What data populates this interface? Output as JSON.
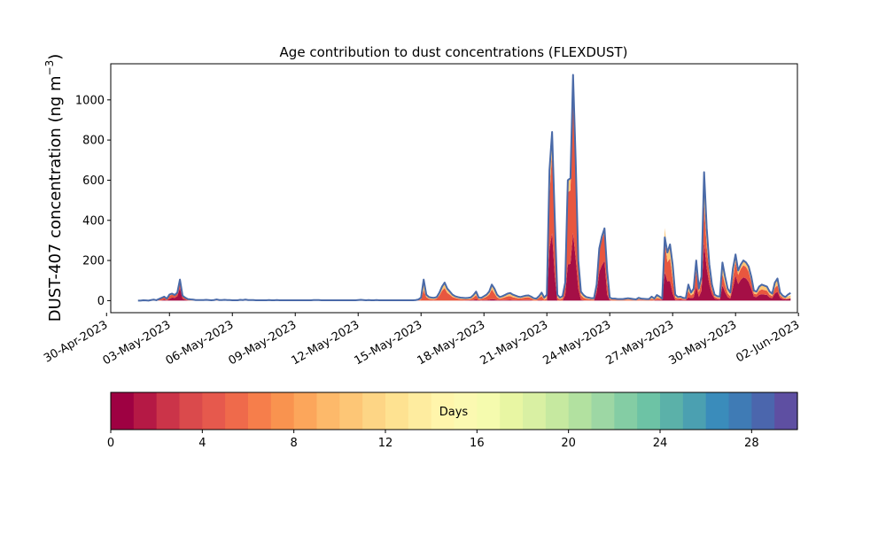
{
  "chart_data": {
    "type": "area",
    "title": "Age contribution to dust concentrations (FLEXDUST)",
    "xlabel": "",
    "ylabel_main": "DUST-407 concentration (ng m",
    "ylabel_sup": "−3",
    "ylabel_close": ")",
    "ylim": [
      -60,
      1180
    ],
    "xlim": [
      "2023-04-30T04:48",
      "2023-06-01T22:48"
    ],
    "grid": false,
    "yticks": [
      0,
      200,
      400,
      600,
      800,
      1000
    ],
    "xticks": [
      "30-Apr-2023",
      "03-May-2023",
      "06-May-2023",
      "09-May-2023",
      "12-May-2023",
      "15-May-2023",
      "18-May-2023",
      "21-May-2023",
      "24-May-2023",
      "27-May-2023",
      "30-May-2023",
      "02-Jun-2023"
    ],
    "x_start": "2023-05-01T12:00",
    "time_step_hours": 3,
    "total": [
      0,
      0,
      2,
      1,
      0,
      3,
      5,
      2,
      8,
      14,
      20,
      10,
      30,
      35,
      28,
      40,
      105,
      25,
      15,
      8,
      6,
      5,
      3,
      3,
      3,
      3,
      4,
      3,
      2,
      3,
      6,
      3,
      3,
      4,
      3,
      3,
      2,
      2,
      2,
      4,
      3,
      5,
      3,
      3,
      3,
      2,
      2,
      2,
      2,
      2,
      3,
      2,
      2,
      3,
      2,
      2,
      2,
      2,
      2,
      2,
      2,
      2,
      2,
      2,
      2,
      2,
      2,
      3,
      3,
      3,
      2,
      2,
      2,
      2,
      2,
      2,
      2,
      2,
      2,
      2,
      2,
      2,
      2,
      2,
      3,
      4,
      3,
      2,
      3,
      2,
      2,
      3,
      2,
      2,
      2,
      2,
      2,
      2,
      2,
      2,
      2,
      2,
      2,
      2,
      2,
      2,
      3,
      6,
      15,
      105,
      30,
      18,
      15,
      14,
      18,
      40,
      70,
      90,
      60,
      45,
      30,
      22,
      18,
      15,
      14,
      13,
      14,
      16,
      28,
      45,
      15,
      14,
      22,
      30,
      45,
      80,
      60,
      30,
      18,
      22,
      28,
      35,
      38,
      30,
      25,
      20,
      18,
      22,
      25,
      26,
      20,
      12,
      10,
      22,
      40,
      15,
      30,
      650,
      840,
      420,
      30,
      15,
      22,
      90,
      600,
      610,
      1125,
      700,
      200,
      45,
      28,
      18,
      15,
      12,
      12,
      80,
      260,
      320,
      360,
      150,
      15,
      10,
      10,
      8,
      8,
      8,
      10,
      12,
      10,
      8,
      6,
      14,
      10,
      9,
      8,
      8,
      20,
      10,
      28,
      20,
      10,
      315,
      240,
      280,
      180,
      30,
      18,
      20,
      14,
      12,
      80,
      40,
      60,
      200,
      60,
      120,
      640,
      360,
      180,
      80,
      30,
      22,
      20,
      190,
      120,
      60,
      40,
      160,
      230,
      150,
      180,
      200,
      190,
      170,
      120,
      50,
      45,
      70,
      80,
      75,
      70,
      45,
      35,
      90,
      110,
      40,
      25,
      18,
      30,
      38
    ],
    "fractions": {
      "old": [
        0.0,
        0.0,
        0.8,
        0.3,
        0.0,
        0.8,
        0.6,
        0.6,
        0.35,
        0.2,
        0.1,
        0.3,
        0.2,
        0.15,
        0.1,
        0.1,
        0.05,
        0.15,
        0.2,
        0.4,
        0.8,
        0.8,
        0.8,
        0.8,
        0.8,
        0.8,
        0.8,
        0.8,
        0.8,
        0.8,
        0.8,
        0.8,
        0.8,
        0.8,
        0.8,
        0.8,
        0.8,
        0.8,
        0.8,
        0.8,
        0.8,
        0.8,
        0.8,
        0.8,
        0.8,
        0.8,
        0.8,
        0.8,
        0.8,
        0.8,
        0.8,
        0.8,
        0.8,
        0.8,
        0.8,
        0.8,
        0.8,
        0.8,
        0.8,
        0.8,
        0.8,
        0.8,
        0.8,
        0.8,
        0.8,
        0.8,
        0.8,
        0.8,
        0.8,
        0.8,
        0.8,
        0.8,
        0.8,
        0.8,
        0.8,
        0.8,
        0.8,
        0.8,
        0.8,
        0.8,
        0.8,
        0.8,
        0.8,
        0.8,
        0.8,
        0.8,
        0.8,
        0.8,
        0.8,
        0.8,
        0.8,
        0.8,
        0.8,
        0.8,
        0.8,
        0.8,
        0.8,
        0.8,
        0.8,
        0.8,
        0.8,
        0.8,
        0.8,
        0.8,
        0.8,
        0.8,
        0.8,
        0.6,
        0.6,
        0.5,
        0.4,
        0.5,
        0.6,
        0.6,
        0.4,
        0.35,
        0.3,
        0.3,
        0.35,
        0.35,
        0.4,
        0.4,
        0.45,
        0.5,
        0.55,
        0.5,
        0.55,
        0.5,
        0.45,
        0.4,
        0.55,
        0.45,
        0.4,
        0.35,
        0.35,
        0.3,
        0.4,
        0.45,
        0.5,
        0.45,
        0.4,
        0.4,
        0.4,
        0.45,
        0.45,
        0.45,
        0.4,
        0.4,
        0.35,
        0.35,
        0.4,
        0.6,
        0.6,
        0.4,
        0.45,
        0.65,
        0.7,
        0.2,
        0.12,
        0.1,
        0.5,
        0.6,
        0.5,
        0.2,
        0.1,
        0.1,
        0.1,
        0.1,
        0.1,
        0.4,
        0.5,
        0.5,
        0.5,
        0.55,
        0.55,
        0.1,
        0.05,
        0.05,
        0.05,
        0.4,
        0.5,
        0.6,
        0.6,
        0.6,
        0.6,
        0.6,
        0.6,
        0.6,
        0.6,
        0.6,
        0.6,
        0.6,
        0.5,
        0.6,
        0.6,
        0.6,
        0.6,
        0.5,
        0.5,
        0.5,
        0.3,
        0.2,
        0.2,
        0.25,
        0.4,
        0.5,
        0.4,
        0.4,
        0.4,
        0.4,
        0.4,
        0.3,
        0.35,
        0.3,
        0.3,
        0.25,
        0.2,
        0.15,
        0.15,
        0.25,
        0.35,
        0.4,
        0.45,
        0.3,
        0.35,
        0.4,
        0.45,
        0.3,
        0.15,
        0.15,
        0.12,
        0.12,
        0.12,
        0.15,
        0.2,
        0.3,
        0.3,
        0.3,
        0.3,
        0.3,
        0.3,
        0.35,
        0.35,
        0.3,
        0.3,
        0.35,
        0.4,
        0.4,
        0.4,
        0.4
      ],
      "mid": [
        0.0,
        0.0,
        0.2,
        0.7,
        1.0,
        0.2,
        0.4,
        0.4,
        0.6,
        0.7,
        0.6,
        0.6,
        0.5,
        0.4,
        0.4,
        0.35,
        0.35,
        0.45,
        0.5,
        0.5,
        0.2,
        0.2,
        0.2,
        0.2,
        0.2,
        0.2,
        0.2,
        0.2,
        0.2,
        0.2,
        0.2,
        0.2,
        0.2,
        0.2,
        0.2,
        0.2,
        0.2,
        0.2,
        0.2,
        0.2,
        0.2,
        0.2,
        0.2,
        0.2,
        0.2,
        0.2,
        0.2,
        0.2,
        0.2,
        0.2,
        0.2,
        0.2,
        0.2,
        0.2,
        0.2,
        0.2,
        0.2,
        0.2,
        0.2,
        0.2,
        0.2,
        0.2,
        0.2,
        0.2,
        0.2,
        0.2,
        0.2,
        0.2,
        0.2,
        0.2,
        0.2,
        0.2,
        0.2,
        0.2,
        0.2,
        0.2,
        0.2,
        0.2,
        0.2,
        0.2,
        0.2,
        0.2,
        0.2,
        0.2,
        0.2,
        0.2,
        0.2,
        0.2,
        0.2,
        0.2,
        0.2,
        0.2,
        0.2,
        0.2,
        0.2,
        0.2,
        0.2,
        0.2,
        0.2,
        0.2,
        0.2,
        0.2,
        0.2,
        0.2,
        0.2,
        0.2,
        0.2,
        0.4,
        0.4,
        0.5,
        0.6,
        0.5,
        0.4,
        0.4,
        0.6,
        0.65,
        0.7,
        0.7,
        0.65,
        0.65,
        0.6,
        0.6,
        0.55,
        0.5,
        0.45,
        0.4,
        0.35,
        0.4,
        0.45,
        0.45,
        0.35,
        0.45,
        0.5,
        0.55,
        0.55,
        0.6,
        0.5,
        0.45,
        0.4,
        0.45,
        0.5,
        0.5,
        0.5,
        0.45,
        0.45,
        0.45,
        0.5,
        0.5,
        0.55,
        0.55,
        0.5,
        0.4,
        0.4,
        0.5,
        0.5,
        0.35,
        0.3,
        0.4,
        0.48,
        0.6,
        0.5,
        0.4,
        0.5,
        0.5,
        0.6,
        0.6,
        0.6,
        0.6,
        0.6,
        0.5,
        0.45,
        0.45,
        0.45,
        0.45,
        0.45,
        0.4,
        0.4,
        0.4,
        0.4,
        0.4,
        0.4,
        0.4,
        0.4,
        0.4,
        0.4,
        0.4,
        0.4,
        0.4,
        0.4,
        0.4,
        0.4,
        0.4,
        0.4,
        0.4,
        0.4,
        0.4,
        0.4,
        0.35,
        0.35,
        0.4,
        0.5,
        0.5,
        0.4,
        0.4,
        0.4,
        0.4,
        0.4,
        0.4,
        0.4,
        0.35,
        0.4,
        0.35,
        0.35,
        0.4,
        0.4,
        0.35,
        0.3,
        0.3,
        0.3,
        0.3,
        0.3,
        0.3,
        0.3,
        0.3,
        0.3,
        0.3,
        0.3,
        0.3,
        0.3,
        0.3,
        0.3,
        0.3,
        0.3,
        0.3,
        0.3,
        0.3,
        0.3,
        0.3,
        0.3,
        0.3,
        0.3,
        0.3,
        0.3,
        0.3,
        0.3,
        0.3,
        0.3,
        0.3
      ],
      "young": [
        0.0,
        0.0,
        0.0,
        0.0,
        0.0,
        0.0,
        0.0,
        0.0,
        0.05,
        0.1,
        0.3,
        0.1,
        0.3,
        0.45,
        0.5,
        0.55,
        0.6,
        0.4,
        0.3,
        0.1,
        0.0,
        0.0,
        0.0,
        0.0,
        0.0,
        0.0,
        0.0,
        0.0,
        0.0,
        0.0,
        0.0,
        0.0,
        0.0,
        0.0,
        0.0,
        0.0,
        0.0,
        0.0,
        0.0,
        0.0,
        0.0,
        0.0,
        0.0,
        0.0,
        0.0,
        0.0,
        0.0,
        0.0,
        0.0,
        0.0,
        0.0,
        0.0,
        0.0,
        0.0,
        0.0,
        0.0,
        0.0,
        0.0,
        0.0,
        0.0,
        0.0,
        0.0,
        0.0,
        0.0,
        0.0,
        0.0,
        0.0,
        0.0,
        0.0,
        0.0,
        0.0,
        0.0,
        0.0,
        0.0,
        0.0,
        0.0,
        0.0,
        0.0,
        0.0,
        0.0,
        0.0,
        0.0,
        0.0,
        0.0,
        0.0,
        0.0,
        0.0,
        0.0,
        0.0,
        0.0,
        0.0,
        0.0,
        0.0,
        0.0,
        0.0,
        0.0,
        0.0,
        0.0,
        0.0,
        0.0,
        0.0,
        0.0,
        0.0,
        0.0,
        0.0,
        0.0,
        0.0,
        0.0,
        0.0,
        0.0,
        0.0,
        0.0,
        0.0,
        0.0,
        0.0,
        0.0,
        0.0,
        0.0,
        0.0,
        0.0,
        0.0,
        0.0,
        0.0,
        0.0,
        0.0,
        0.1,
        0.1,
        0.1,
        0.1,
        0.15,
        0.1,
        0.1,
        0.1,
        0.1,
        0.1,
        0.1,
        0.1,
        0.1,
        0.1,
        0.1,
        0.1,
        0.1,
        0.1,
        0.1,
        0.1,
        0.1,
        0.1,
        0.1,
        0.1,
        0.1,
        0.1,
        0.0,
        0.0,
        0.1,
        0.05,
        0.0,
        0.0,
        0.4,
        0.4,
        0.3,
        0.0,
        0.0,
        0.0,
        0.3,
        0.3,
        0.3,
        0.3,
        0.3,
        0.3,
        0.1,
        0.05,
        0.05,
        0.05,
        0.0,
        0.0,
        0.5,
        0.55,
        0.55,
        0.55,
        0.2,
        0.1,
        0.0,
        0.0,
        0.0,
        0.0,
        0.0,
        0.0,
        0.0,
        0.0,
        0.0,
        0.0,
        0.0,
        0.1,
        0.0,
        0.0,
        0.0,
        0.0,
        0.1,
        0.1,
        0.1,
        0.35,
        0.45,
        0.4,
        0.35,
        0.2,
        0.1,
        0.2,
        0.2,
        0.2,
        0.2,
        0.2,
        0.3,
        0.25,
        0.35,
        0.3,
        0.4,
        0.45,
        0.45,
        0.45,
        0.4,
        0.35,
        0.3,
        0.25,
        0.4,
        0.35,
        0.3,
        0.25,
        0.4,
        0.55,
        0.55,
        0.58,
        0.58,
        0.58,
        0.55,
        0.5,
        0.4,
        0.4,
        0.4,
        0.4,
        0.4,
        0.4,
        0.35,
        0.35,
        0.4,
        0.4,
        0.35,
        0.3,
        0.3,
        0.3,
        0.3
      ]
    },
    "series_colors": {
      "young": "#a50f46",
      "mid": "#e8573f",
      "old": "#fdc575",
      "total_line": "#4a6aa8"
    },
    "colorbar": {
      "label": "Days",
      "min": 0,
      "max": 30,
      "ticks": [
        0,
        4,
        8,
        12,
        16,
        20,
        24,
        28
      ],
      "colors": [
        "#9e0142",
        "#b51945",
        "#cb3449",
        "#da4a4c",
        "#e6594d",
        "#ef6a4b",
        "#f67e4b",
        "#f9934f",
        "#fca65b",
        "#fdb96a",
        "#fdc676",
        "#fdd585",
        "#fee291",
        "#feec9f",
        "#fff5ab",
        "#fbf9b1",
        "#f5fbae",
        "#e8f6a3",
        "#d9f0a3",
        "#c6e9a0",
        "#b2e1a0",
        "#9dd7a4",
        "#84cda4",
        "#6dc3a5",
        "#5bb1a9",
        "#4ba0b1",
        "#3a8cbb",
        "#3f7bb5",
        "#4b66ad",
        "#5e4fa2"
      ]
    }
  }
}
